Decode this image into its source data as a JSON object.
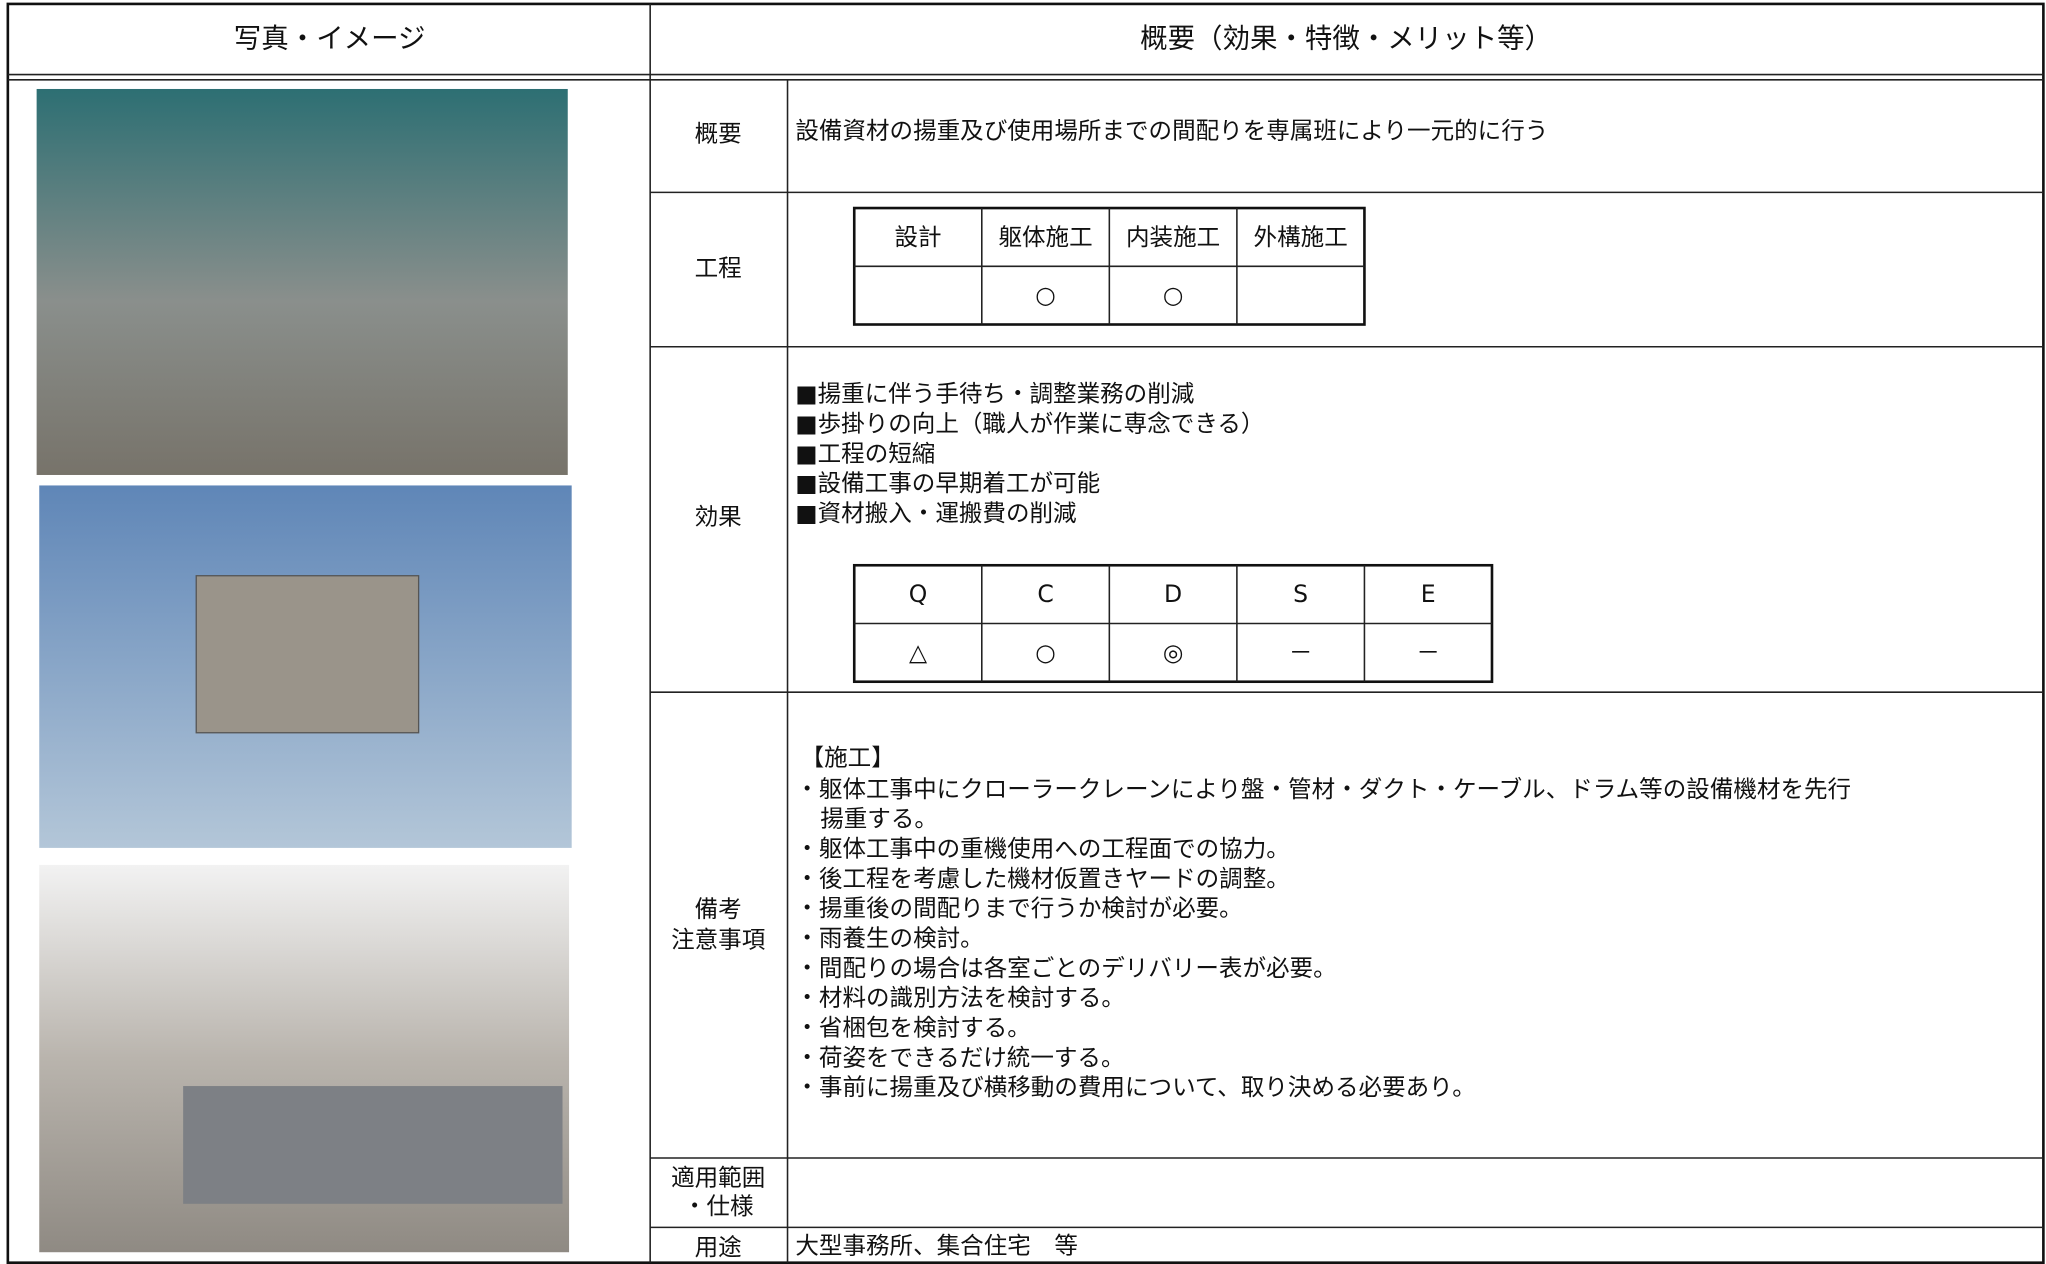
{
  "header": {
    "left": "写真・イメージ",
    "right": "概要（効果・特徴・メリット等）"
  },
  "overview": {
    "label": "概要",
    "text": "設備資材の揚重及び使用場所までの間配りを専属班により一元的に行う"
  },
  "process": {
    "label": "工程",
    "columns": [
      "設計",
      "躯体施工",
      "内装施工",
      "外構施工"
    ],
    "marks": [
      null,
      "○",
      "○",
      null
    ]
  },
  "effect": {
    "label": "効果",
    "items": [
      "■揚重に伴う手待ち・調整業務の削減",
      "■歩掛りの向上（職人が作業に専念できる）",
      "■工程の短縮",
      "■設備工事の早期着工が可能",
      "■資材搬入・運搬費の削減"
    ],
    "qcdse": {
      "headers": [
        "Q",
        "C",
        "D",
        "S",
        "E"
      ],
      "ratings": [
        "△",
        "○",
        "◎",
        "－",
        "－"
      ]
    }
  },
  "notes": {
    "label": [
      "備考",
      "注意事項"
    ],
    "heading": "【施工】",
    "items": [
      [
        "・躯体工事中にクローラークレーンにより盤・管材・ダクト・ケーブル、ドラム等の設備機材を先行",
        "揚重する。"
      ],
      [
        "・躯体工事中の重機使用への工程面での協力。"
      ],
      [
        "・後工程を考慮した機材仮置きヤードの調整。"
      ],
      [
        "・揚重後の間配りまで行うか検討が必要。"
      ],
      [
        "・雨養生の検討。"
      ],
      [
        "・間配りの場合は各室ごとのデリバリー表が必要。"
      ],
      [
        "・材料の識別方法を検討する。"
      ],
      [
        "・省梱包を検討する。"
      ],
      [
        "・荷姿をできるだけ統一する。"
      ],
      [
        "・事前に揚重及び横移動の費用について、取り決める必要あり。"
      ]
    ]
  },
  "scope": {
    "label": [
      "適用範囲",
      "・仕様"
    ]
  },
  "usage": {
    "label": "用途",
    "text": "大型事務所、集合住宅　等"
  }
}
